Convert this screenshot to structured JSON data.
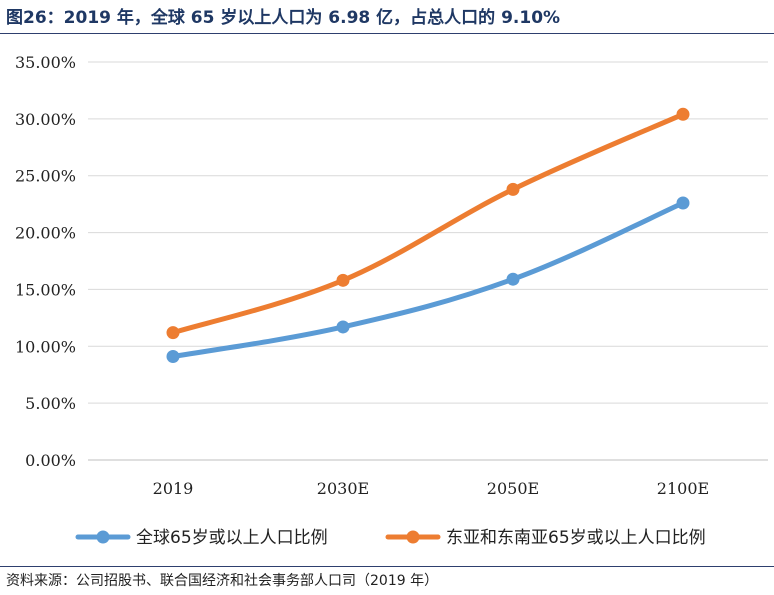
{
  "title": "图26：2019 年，全球 65 岁以上人口为 6.98 亿，占总人口的 9.10%",
  "source": "资料来源：公司招股书、联合国经济和社会事务部人口司（2019 年）",
  "chart_data": {
    "type": "line",
    "categories": [
      "2019",
      "2030E",
      "2050E",
      "2100E"
    ],
    "series": [
      {
        "name": "全球65岁或以上人口比例",
        "color": "#5b9bd5",
        "values": [
          9.1,
          11.7,
          15.9,
          22.6
        ]
      },
      {
        "name": "东亚和东南亚65岁或以上人口比例",
        "color": "#ed7d31",
        "values": [
          11.2,
          15.8,
          23.8,
          30.4
        ]
      }
    ],
    "ylim": [
      0,
      35
    ],
    "yticks": [
      0,
      5,
      10,
      15,
      20,
      25,
      30,
      35
    ],
    "ytick_labels": [
      "0.00%",
      "5.00%",
      "10.00%",
      "15.00%",
      "20.00%",
      "25.00%",
      "30.00%",
      "35.00%"
    ],
    "grid": true,
    "legend_position": "bottom",
    "xlabel": "",
    "ylabel": ""
  }
}
